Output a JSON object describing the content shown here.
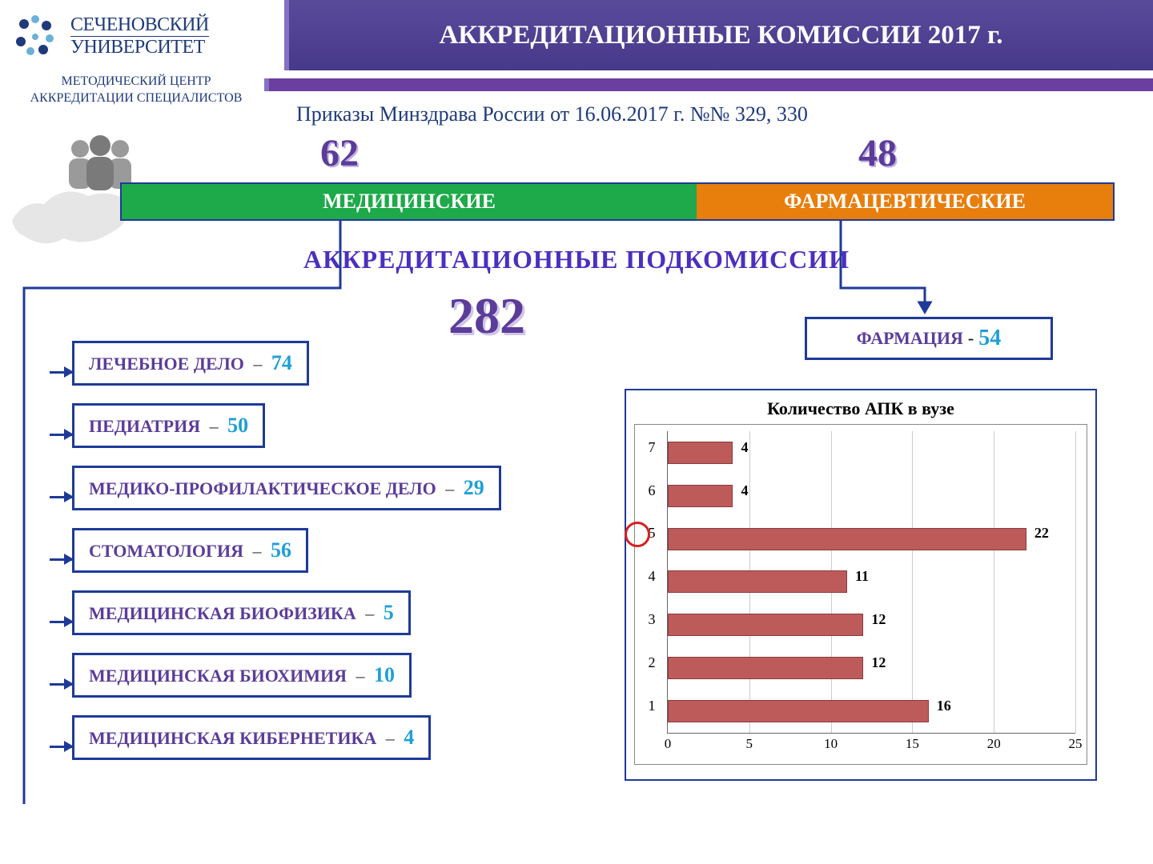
{
  "header": {
    "uni_line1": "СЕЧЕНОВСКИЙ",
    "uni_line2": "УНИВЕРСИТЕТ",
    "center_line1": "МЕТОДИЧЕСКИЙ ЦЕНТР",
    "center_line2": "АККРЕДИТАЦИИ СПЕЦИАЛИСТОВ",
    "title": "АККРЕДИТАЦИОННЫЕ КОМИССИИ 2017 г."
  },
  "decree": "Приказы Минздрава России от 16.06.2017 г. №№ 329, 330",
  "top_numbers": {
    "medical": "62",
    "pharm": "48"
  },
  "band": {
    "med": "МЕДИЦИНСКИЕ",
    "pharm": "ФАРМАЦЕВТИЧЕСКИЕ"
  },
  "sub_title": "АККРЕДИТАЦИОННЫЕ  ПОДКОМИССИИ",
  "total_sub": "282",
  "pharmacy_box": {
    "label": "ФАРМАЦИЯ",
    "value": "54"
  },
  "specialties": [
    {
      "label": "ЛЕЧЕБНОЕ ДЕЛО",
      "value": "74"
    },
    {
      "label": "ПЕДИАТРИЯ",
      "value": "50"
    },
    {
      "label": "МЕДИКО-ПРОФИЛАКТИЧЕСКОЕ ДЕЛО",
      "value": "29"
    },
    {
      "label": "СТОМАТОЛОГИЯ",
      "value": "56"
    },
    {
      "label": "МЕДИЦИНСКАЯ БИОФИЗИКА",
      "value": "5"
    },
    {
      "label": "МЕДИЦИНСКАЯ БИОХИМИЯ",
      "value": "10"
    },
    {
      "label": "МЕДИЦИНСКАЯ КИБЕРНЕТИКА",
      "value": "4"
    }
  ],
  "chart": {
    "title": "Количество АПК в вузе",
    "type": "horizontal-bar",
    "y_categories": [
      "1",
      "2",
      "3",
      "4",
      "5",
      "6",
      "7"
    ],
    "values": [
      16,
      12,
      12,
      11,
      22,
      4,
      4
    ],
    "highlight_category": "5",
    "bar_color": "#bd5b5b",
    "bar_border": "#8a3a3a",
    "xlim": [
      0,
      25
    ],
    "xtick_step": 5,
    "grid_color": "#cccccc",
    "value_fontsize": 18,
    "label_fontsize": 18
  },
  "colors": {
    "purple_title_bg": "#4e3e8e",
    "purple_text": "#5b3c99",
    "navy": "#1e3a99",
    "green": "#1ea94a",
    "orange": "#e87e0c",
    "cyan": "#1ea0d6",
    "highlight_red": "#d62020"
  }
}
